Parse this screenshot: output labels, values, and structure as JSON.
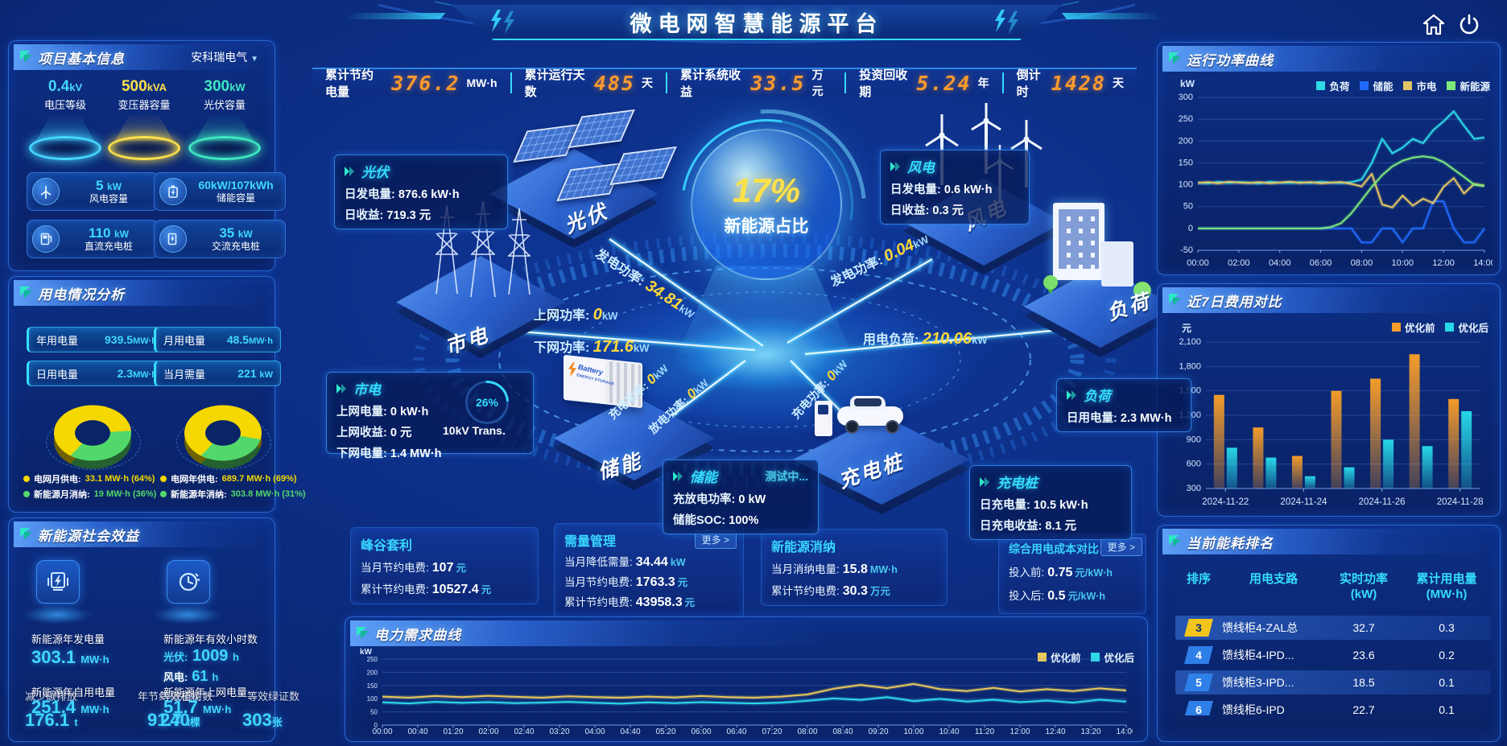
{
  "app": {
    "title": "微电网智慧能源平台"
  },
  "colors": {
    "accent_cyan": "#35dcff",
    "accent_yellow": "#ffd83a",
    "accent_orange": "#ff9a2e",
    "grid_yellow": "#f5d800",
    "newenergy_green": "#52d86a"
  },
  "topbar": {
    "stats": [
      {
        "label": "累计节约电量",
        "value": "376.2",
        "unit": "MW·h"
      },
      {
        "label": "累计运行天数",
        "value": "485",
        "unit": "天"
      },
      {
        "label": "累计系统收益",
        "value": "33.5",
        "unit": "万元"
      },
      {
        "label": "投资回收期",
        "value": "5.24",
        "unit": "年"
      },
      {
        "label": "倒计时",
        "value": "1428",
        "unit": "天"
      }
    ]
  },
  "left": {
    "project": {
      "title": "项目基本信息",
      "company": "安科瑞电气",
      "pedestals": [
        {
          "value": "0.4",
          "unit": "kV",
          "label": "电压等级",
          "color": "#45d7ff"
        },
        {
          "value": "500",
          "unit": "kVA",
          "label": "变压器容量",
          "color": "#ffe14a"
        },
        {
          "value": "300",
          "unit": "kW",
          "label": "光伏容量",
          "color": "#3fe8c0"
        }
      ],
      "cards": [
        {
          "icon": "wind-turbine",
          "value": "5",
          "unit": "kW",
          "label": "风电容量"
        },
        {
          "icon": "battery",
          "value": "60kW/107kWh",
          "unit": "",
          "label": "储能容量"
        },
        {
          "icon": "dc-charger",
          "value": "110",
          "unit": "kW",
          "label": "直流充电桩"
        },
        {
          "icon": "ac-charger",
          "value": "35",
          "unit": "kW",
          "label": "交流充电桩"
        }
      ]
    },
    "usage": {
      "title": "用电情况分析",
      "chips": [
        {
          "label": "年用电量",
          "value": "939.5",
          "unit": "MW·h"
        },
        {
          "label": "月用电量",
          "value": "48.5",
          "unit": "MW·h"
        },
        {
          "label": "日用电量",
          "value": "2.3",
          "unit": "MW·h"
        },
        {
          "label": "当月需量",
          "value": "221",
          "unit": "kW"
        }
      ],
      "legends": [
        {
          "label": "电网月供电:",
          "value": "33.1 MW·h (64%)",
          "color": "#f5d800"
        },
        {
          "label": "新能源月消纳:",
          "value": "19 MW·h (36%)",
          "color": "#52d86a"
        },
        {
          "label": "电网年供电:",
          "value": "689.7 MW·h (69%)",
          "color": "#f5d800"
        },
        {
          "label": "新能源年消纳:",
          "value": "303.8 MW·h (31%)",
          "color": "#52d86a"
        }
      ]
    },
    "benefit": {
      "title": "新能源社会效益",
      "gen": {
        "label": "新能源年发电量",
        "value": "303.1",
        "unit": "MW·h"
      },
      "hours": {
        "label": "新能源年有效小时数",
        "pv_label": "光伏:",
        "pv_value": "1009",
        "pv_unit": "h",
        "wind_label": "风电:",
        "wind_value": "61",
        "wind_unit": "h"
      },
      "self_use": {
        "label": "新能源年自用电量",
        "value": "251.4",
        "unit": "MW·h"
      },
      "co2": {
        "label": "减少碳排放",
        "value": "176.1",
        "unit": "t"
      },
      "coal": {
        "label": "年节约标准煤",
        "value": "91.7",
        "unit": "t"
      },
      "to_grid": {
        "label": "新能源年上网电量",
        "value": "51.7",
        "unit": "MW·h"
      },
      "trees": {
        "label": "等效植树数",
        "value": "240",
        "unit": "棵"
      },
      "certs": {
        "label": "等效绿证数",
        "value": "303",
        "unit": "张"
      }
    }
  },
  "center": {
    "sphere": {
      "value": "17%",
      "label": "新能源占比"
    },
    "nodes": {
      "pv": "光伏",
      "wind": "风电",
      "grid": "市电",
      "load": "负荷",
      "storage": "储能",
      "pile": "充电桩"
    },
    "battery_text": {
      "brand": "Battery",
      "sub": "ENERGY STORAGE"
    },
    "flows": [
      {
        "label": "发电功率:",
        "value": "34.81",
        "unit": "kW"
      },
      {
        "label": "上网功率:",
        "value": "0",
        "unit": "kW"
      },
      {
        "label": "下网功率:",
        "value": "171.6",
        "unit": "kW"
      },
      {
        "label": "发电功率:",
        "value": "0.04",
        "unit": "kW"
      },
      {
        "label": "用电负荷:",
        "value": "210.06",
        "unit": "kW"
      },
      {
        "label": "充电功率:",
        "value": "0",
        "unit": "kW"
      },
      {
        "label": "放电功率:",
        "value": "0",
        "unit": "kW"
      },
      {
        "label": "充电功率:",
        "value": "0",
        "unit": "kW"
      }
    ],
    "transformer": {
      "percent": "26%",
      "label": "10kV Trans."
    },
    "info_boxes": {
      "pv": {
        "title": "光伏",
        "l1": "日发电量:",
        "v1": "876.6 kW·h",
        "l2": "日收益:",
        "v2": "719.3 元"
      },
      "wind": {
        "title": "风电",
        "l1": "日发电量:",
        "v1": "0.6 kW·h",
        "l2": "日收益:",
        "v2": "0.3 元"
      },
      "grid": {
        "title": "市电",
        "l1": "上网电量:",
        "v1": "0 kW·h",
        "l2": "上网收益:",
        "v2": "0 元",
        "l3": "下网电量:",
        "v3": "1.4 MW·h"
      },
      "storage": {
        "title": "储能",
        "status": "测试中...",
        "l1": "充放电功率:",
        "v1": "0 kW",
        "l2": "储能SOC:",
        "v2": "100%"
      },
      "load": {
        "title": "负荷",
        "l1": "日用电量:",
        "v1": "2.3 MW·h"
      },
      "pile": {
        "title": "充电桩",
        "l1": "日充电量:",
        "v1": "10.5 kW·h",
        "l2": "日充电收益:",
        "v2": "8.1 元"
      }
    },
    "kpi_boxes": [
      {
        "title": "峰谷套利",
        "lines": [
          {
            "label": "当月节约电费:",
            "value": "107",
            "unit": "元"
          },
          {
            "label": "累计节约电费:",
            "value": "10527.4",
            "unit": "元"
          }
        ]
      },
      {
        "title": "需量管理",
        "more": "更多 >",
        "lines": [
          {
            "label": "当月降低需量:",
            "value": "34.44",
            "unit": "kW"
          },
          {
            "label": "当月节约电费:",
            "value": "1763.3",
            "unit": "元"
          },
          {
            "label": "累计节约电费:",
            "value": "43958.3",
            "unit": "元"
          }
        ]
      },
      {
        "title": "新能源消纳",
        "lines": [
          {
            "label": "当月消纳电量:",
            "value": "15.8",
            "unit": "MW·h"
          },
          {
            "label": "累计节约电费:",
            "value": "30.3",
            "unit": "万元"
          }
        ]
      },
      {
        "title": "综合用电成本对比",
        "more": "更多 >",
        "lines": [
          {
            "label": "投入前:",
            "value": "0.75",
            "unit": "元/kW·h"
          },
          {
            "label": "投入后:",
            "value": "0.5",
            "unit": "元/kW·h"
          }
        ]
      }
    ],
    "demand_panel": {
      "title": "电力需求曲线"
    }
  },
  "right": {
    "power_curve": {
      "title": "运行功率曲线"
    },
    "cost7": {
      "title": "近7日费用对比"
    },
    "ranking": {
      "title": "当前能耗排名",
      "headers": [
        {
          "t": "排序",
          "s": ""
        },
        {
          "t": "用电支路",
          "s": ""
        },
        {
          "t": "实时功率",
          "s": "(kW)"
        },
        {
          "t": "累计用电量",
          "s": "(MW·h)"
        }
      ],
      "rows": [
        {
          "rank": "3",
          "branch": "馈线柜4-ZAL总",
          "power": "32.7",
          "energy": "0.3",
          "hl": true,
          "badge_bg": "#f2c41c",
          "badge_fg": "#06306e"
        },
        {
          "rank": "4",
          "branch": "馈线柜4-IPD...",
          "power": "23.6",
          "energy": "0.2",
          "hl": false,
          "badge_bg": "#2f7fe8",
          "badge_fg": "#ffffff"
        },
        {
          "rank": "5",
          "branch": "馈线柜3-IPD...",
          "power": "18.5",
          "energy": "0.1",
          "hl": true,
          "badge_bg": "#2f7fe8",
          "badge_fg": "#ffffff"
        },
        {
          "rank": "6",
          "branch": "馈线柜6-IPD",
          "power": "22.7",
          "energy": "0.1",
          "hl": false,
          "badge_bg": "#2f7fe8",
          "badge_fg": "#ffffff"
        }
      ]
    }
  },
  "chart_data": [
    {
      "id": "run_power",
      "type": "line",
      "title": "运行功率曲线",
      "ylabel": "kW",
      "ylim": [
        -50,
        300
      ],
      "yticks": [
        300,
        250,
        200,
        150,
        100,
        50,
        0,
        -50
      ],
      "x_labels": [
        "00:00",
        "02:00",
        "04:00",
        "06:00",
        "08:00",
        "10:00",
        "12:00",
        "14:00"
      ],
      "x_range_hours": [
        0,
        14
      ],
      "legend_position": "top",
      "grid": true,
      "series": [
        {
          "name": "负荷",
          "color": "#2ed9e8",
          "values": [
            105,
            103,
            107,
            104,
            106,
            105,
            103,
            107,
            105,
            104,
            106,
            104,
            107,
            105,
            104,
            106,
            112,
            150,
            205,
            172,
            185,
            205,
            195,
            225,
            245,
            268,
            235,
            205,
            208
          ]
        },
        {
          "name": "储能",
          "color": "#1f6bff",
          "values": [
            0,
            0,
            0,
            0,
            0,
            0,
            0,
            0,
            0,
            0,
            0,
            0,
            0,
            0,
            0,
            0,
            -32,
            -32,
            0,
            0,
            -32,
            0,
            0,
            62,
            62,
            0,
            -32,
            -32,
            0
          ]
        },
        {
          "name": "市电",
          "color": "#e2c565",
          "values": [
            104,
            106,
            103,
            107,
            105,
            104,
            106,
            103,
            105,
            107,
            104,
            106,
            103,
            105,
            106,
            102,
            96,
            125,
            55,
            48,
            75,
            52,
            68,
            58,
            95,
            115,
            80,
            102,
            98
          ]
        },
        {
          "name": "新能源",
          "color": "#7ce87a",
          "values": [
            0,
            0,
            0,
            0,
            0,
            0,
            0,
            0,
            0,
            0,
            0,
            0,
            0,
            3,
            12,
            35,
            65,
            95,
            122,
            142,
            155,
            162,
            165,
            162,
            152,
            135,
            118,
            100,
            97
          ]
        }
      ]
    },
    {
      "id": "cost7",
      "type": "bar",
      "title": "近7日费用对比",
      "ylabel": "元",
      "ylim": [
        300,
        2100
      ],
      "ytick_vals": [
        2100,
        1800,
        1500,
        1200,
        900,
        600,
        300
      ],
      "ytick_labels": [
        "2,100",
        "1,800",
        "1,500",
        "1,200",
        "900",
        "600",
        "300"
      ],
      "categories": [
        "2024-11-22",
        "2024-11-23",
        "2024-11-24",
        "2024-11-25",
        "2024-11-26",
        "2024-11-27",
        "2024-11-28"
      ],
      "x_tick_labels": [
        "2024-11-22",
        "2024-11-24",
        "2024-11-26",
        "2024-11-28"
      ],
      "x_tick_groups": [
        0,
        2,
        4,
        6
      ],
      "legend_position": "top-right",
      "grid": true,
      "series": [
        {
          "name": "优化前",
          "color": "#f49b2a",
          "values": [
            1450,
            1050,
            700,
            1500,
            1650,
            1950,
            1400
          ]
        },
        {
          "name": "优化后",
          "color": "#27d8e8",
          "values": [
            800,
            680,
            450,
            560,
            900,
            820,
            1250
          ]
        }
      ]
    },
    {
      "id": "demand",
      "type": "line",
      "title": "电力需求曲线",
      "ylabel": "kW",
      "ylim": [
        0,
        250
      ],
      "yticks": [
        250,
        200,
        150,
        100,
        50,
        0
      ],
      "x_labels": [
        "00:00",
        "00:40",
        "01:20",
        "02:00",
        "02:40",
        "03:20",
        "04:00",
        "04:40",
        "05:20",
        "06:00",
        "06:40",
        "07:20",
        "08:00",
        "08:40",
        "09:20",
        "10:00",
        "10:40",
        "11:20",
        "12:00",
        "12:40",
        "13:20",
        "14:00"
      ],
      "legend_position": "top-right",
      "grid": true,
      "series": [
        {
          "name": "优化前",
          "color": "#e8c95a",
          "values": [
            108,
            104,
            110,
            106,
            111,
            107,
            104,
            109,
            106,
            104,
            108,
            105,
            110,
            106,
            104,
            108,
            116,
            138,
            152,
            140,
            156,
            136,
            129,
            141,
            127,
            136,
            129,
            139,
            131
          ]
        },
        {
          "name": "优化后",
          "color": "#2ed9e8",
          "values": [
            86,
            82,
            88,
            84,
            87,
            83,
            85,
            88,
            84,
            81,
            86,
            83,
            87,
            84,
            82,
            85,
            92,
            101,
            95,
            106,
            91,
            99,
            89,
            96,
            87,
            93,
            85,
            96,
            89
          ]
        }
      ]
    },
    {
      "id": "month_mix",
      "type": "pie",
      "slices": [
        {
          "label": "电网月供电",
          "value": 64,
          "color": "#f5d800"
        },
        {
          "label": "新能源月消纳",
          "value": 36,
          "color": "#52d86a"
        }
      ]
    },
    {
      "id": "year_mix",
      "type": "pie",
      "slices": [
        {
          "label": "电网年供电",
          "value": 69,
          "color": "#f5d800"
        },
        {
          "label": "新能源年消纳",
          "value": 31,
          "color": "#52d86a"
        }
      ]
    }
  ]
}
